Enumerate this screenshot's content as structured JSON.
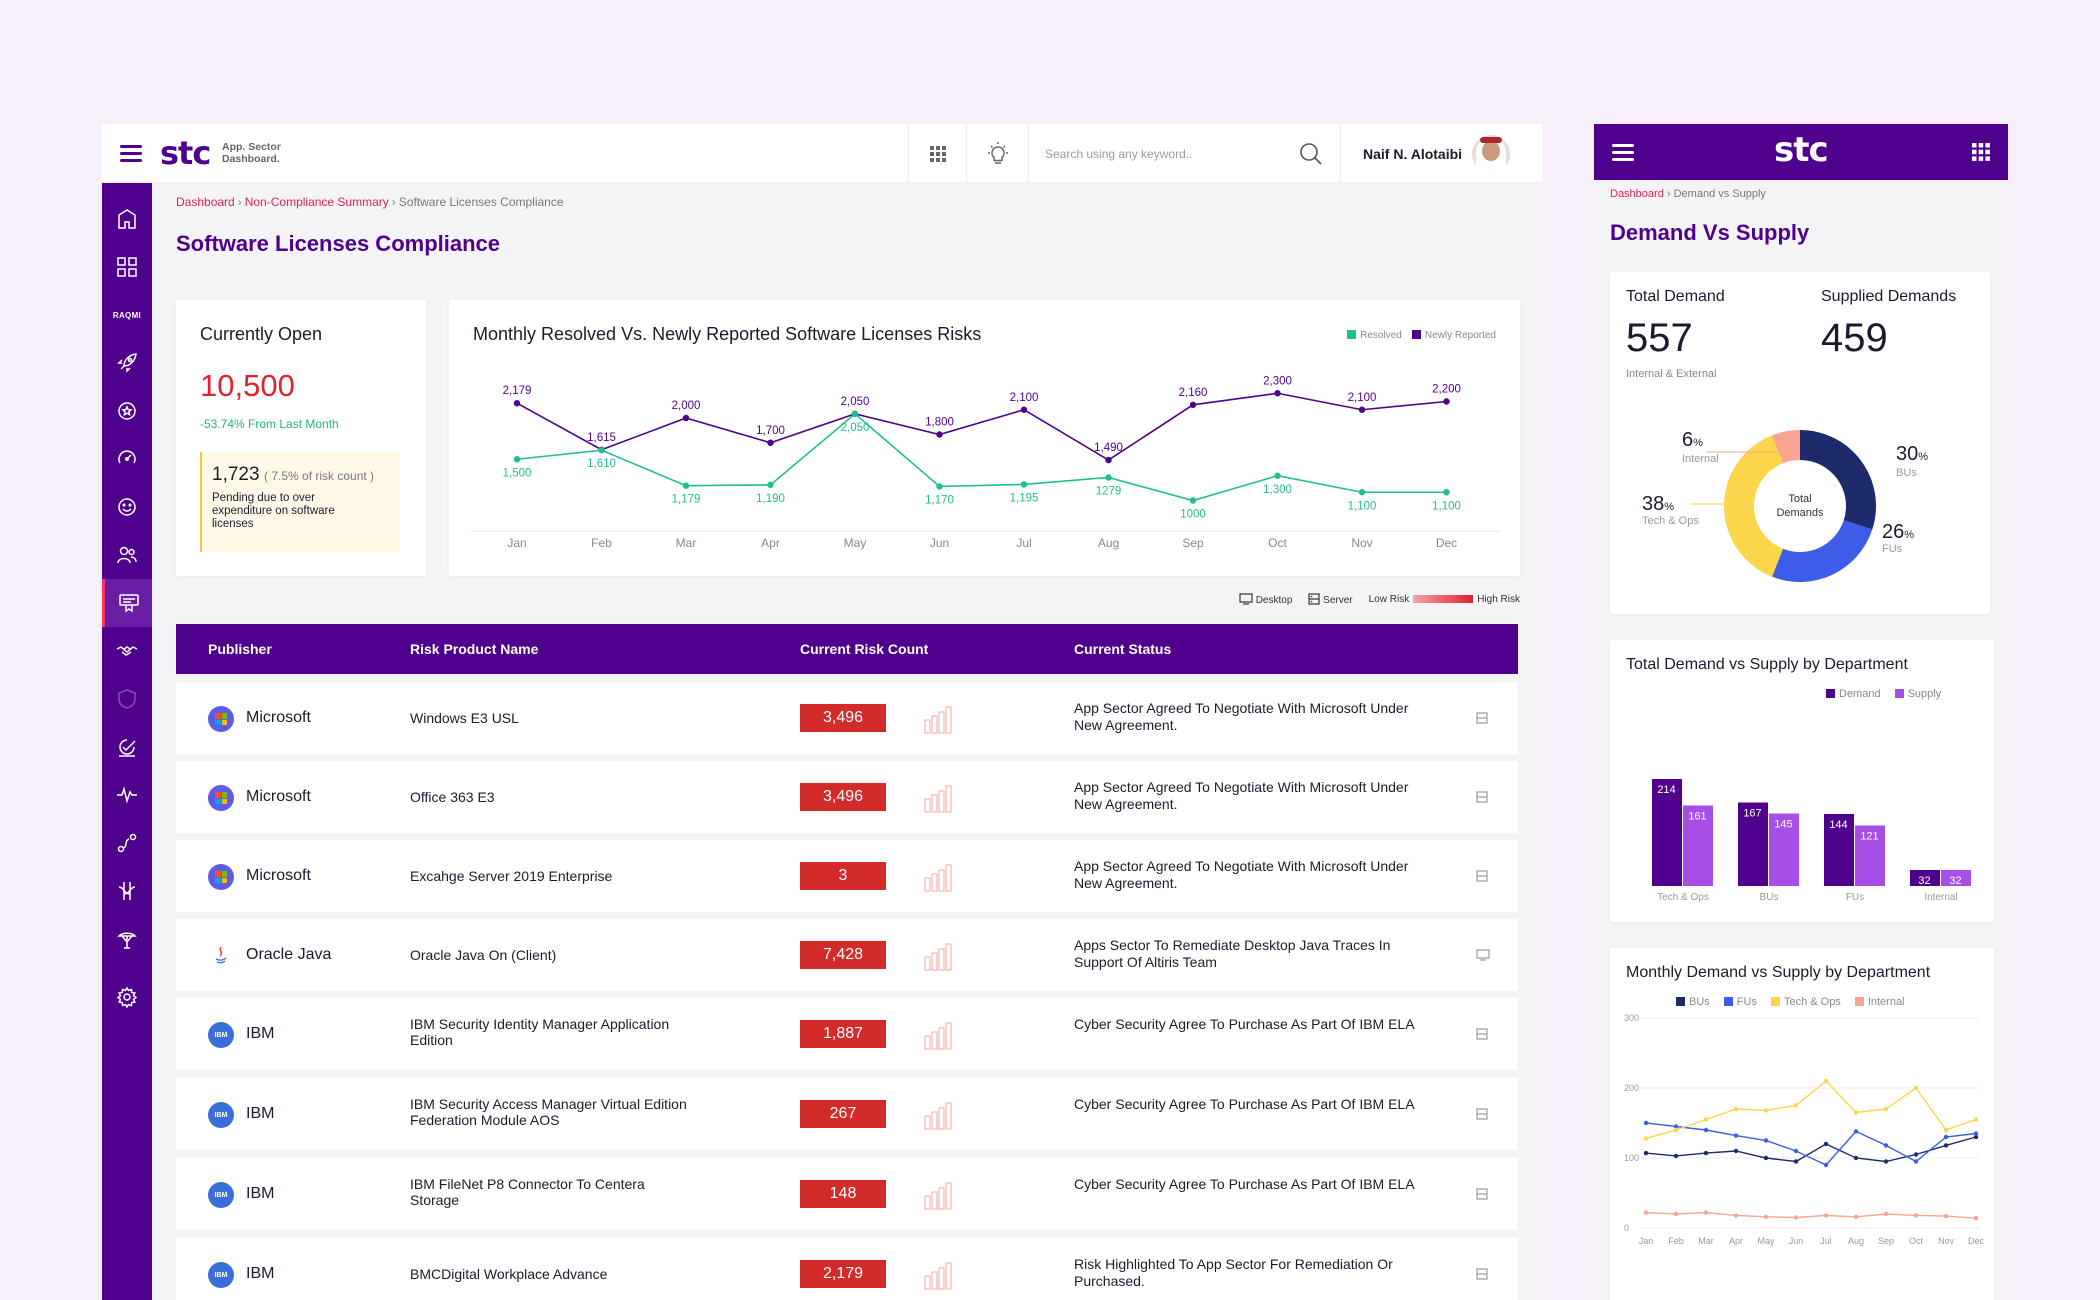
{
  "header": {
    "logo": "stc",
    "subtitle_line1": "App. Sector",
    "subtitle_line2": "Dashboard.",
    "search_placeholder": "Search using any keyword..",
    "user_name": "Naif N. Alotaibi"
  },
  "sidebar": {
    "items": [
      {
        "icon": "home-icon"
      },
      {
        "icon": "grid-icon"
      },
      {
        "icon": "raqmi-logo",
        "label": "RAQMI"
      },
      {
        "icon": "rocket-icon"
      },
      {
        "icon": "badge-icon"
      },
      {
        "icon": "speed-icon"
      },
      {
        "icon": "smile-icon"
      },
      {
        "icon": "users-icon"
      },
      {
        "icon": "license-icon",
        "active": true
      },
      {
        "icon": "handshake-icon"
      },
      {
        "icon": "shield-icon"
      },
      {
        "icon": "checklist-icon"
      },
      {
        "icon": "pulse-icon"
      },
      {
        "icon": "route-icon"
      },
      {
        "icon": "network-icon"
      },
      {
        "icon": "globe-icon"
      },
      {
        "icon": "settings-icon"
      }
    ]
  },
  "breadcrumb": {
    "item1": "Dashboard",
    "item2": "Non-Compliance Summary",
    "current": "Software Licenses Compliance"
  },
  "page_title": "Software Licenses Compliance",
  "open_card": {
    "title": "Currently Open",
    "value": "10,500",
    "trend_value": "-53.74",
    "trend_text": "% From Last Month",
    "note_count": "1,723",
    "note_pct": "( 7.5% of risk count )",
    "note_text": "Pending due to over expenditure on software licenses"
  },
  "risk_chart": {
    "title": "Monthly Resolved Vs. Newly Reported Software Licenses Risks",
    "legend_resolved": "Resolved",
    "legend_new": "Newly Reported"
  },
  "chart_data": [
    {
      "type": "line",
      "title": "Monthly Resolved Vs. Newly Reported Software Licenses Risks",
      "x": [
        "Jan",
        "Feb",
        "Mar",
        "Apr",
        "May",
        "Jun",
        "Jul",
        "Aug",
        "Sep",
        "Oct",
        "Nov",
        "Dec"
      ],
      "series": [
        {
          "name": "Newly Reported",
          "color": "#4f008c",
          "values": [
            2179,
            1615,
            2000,
            1700,
            2050,
            1800,
            2100,
            1490,
            2160,
            2300,
            2100,
            2200
          ],
          "labels": [
            "2,179",
            "1,615",
            "2,000",
            "1,700",
            "2,050",
            "1,800",
            "2,100",
            "1,490",
            "2,160",
            "2,300",
            "2,100",
            "2,200"
          ]
        },
        {
          "name": "Resolved",
          "color": "#1fbf8f",
          "values": [
            1500,
            1610,
            1179,
            1190,
            2050,
            1170,
            1195,
            1279,
            1000,
            1300,
            1100,
            1100
          ],
          "labels": [
            "1,500",
            "1,610",
            "1,179",
            "1,190",
            "2,050",
            "1,170",
            "1,195",
            "1279",
            "1000",
            "1,300",
            "1,100",
            "1,100"
          ]
        }
      ],
      "grid": false,
      "legend": "top-right"
    },
    {
      "type": "pie",
      "title": "",
      "center_label": "Total Demands",
      "slices": [
        {
          "label": "BUs",
          "value": 30,
          "color": "#1d2a6b"
        },
        {
          "label": "FUs",
          "value": 26,
          "color": "#3d5ce8"
        },
        {
          "label": "Tech & Ops",
          "value": 38,
          "color": "#fcd64a"
        },
        {
          "label": "Internal",
          "value": 6,
          "color": "#f7a493"
        }
      ]
    },
    {
      "type": "bar",
      "title": "Total Demand vs Supply by Department",
      "categories": [
        "Tech & Ops",
        "BUs",
        "FUs",
        "Internal"
      ],
      "series": [
        {
          "name": "Demand",
          "color": "#4f008c",
          "values": [
            214,
            167,
            144,
            32
          ]
        },
        {
          "name": "Supply",
          "color": "#a64ee6",
          "values": [
            161,
            145,
            121,
            32
          ]
        }
      ],
      "legend": "top-right"
    },
    {
      "type": "line",
      "title": "Monthly Demand vs Supply by Department",
      "x": [
        "Jan",
        "Feb",
        "Mar",
        "Apr",
        "May",
        "Jun",
        "Jul",
        "Aug",
        "Sep",
        "Oct",
        "Nov",
        "Dec"
      ],
      "ylim": [
        0,
        300
      ],
      "yticks": [
        "0",
        "100",
        "200",
        "300"
      ],
      "series": [
        {
          "name": "BUs",
          "color": "#1d2a6b",
          "values": [
            107,
            103,
            107,
            110,
            100,
            95,
            120,
            100,
            95,
            105,
            118,
            130
          ]
        },
        {
          "name": "FUs",
          "color": "#3d5ce8",
          "values": [
            150,
            145,
            140,
            132,
            125,
            110,
            90,
            138,
            118,
            95,
            130,
            135
          ]
        },
        {
          "name": "Tech & Ops",
          "color": "#fcd64a",
          "values": [
            128,
            140,
            155,
            170,
            168,
            175,
            210,
            165,
            170,
            200,
            140,
            155
          ]
        },
        {
          "name": "Internal",
          "color": "#f7a493",
          "values": [
            22,
            20,
            22,
            18,
            16,
            15,
            18,
            16,
            20,
            18,
            17,
            14
          ]
        }
      ],
      "legend": "top"
    }
  ],
  "table_legend": {
    "desktop": "Desktop",
    "server": "Server",
    "low": "Low Risk",
    "high": "High Risk"
  },
  "table": {
    "headers": [
      "Publisher",
      "Risk Product Name",
      "Current Risk Count",
      "Current Status"
    ],
    "rows": [
      {
        "publisher": "Microsoft",
        "product": "Windows E3 USL",
        "count": "3,496",
        "status": "App Sector Agreed To Negotiate With Microsoft Under New Agreement.",
        "device": "server"
      },
      {
        "publisher": "Microsoft",
        "product": "Office 363 E3",
        "count": "3,496",
        "status": "App Sector Agreed To Negotiate With  Microsoft Under New Agreement.",
        "device": "server"
      },
      {
        "publisher": "Microsoft",
        "product": "Excahge Server 2019 Enterprise",
        "count": "3",
        "status": "App Sector Agreed To Negotiate With Microsoft Under New Agreement.",
        "device": "server"
      },
      {
        "publisher": "Oracle Java",
        "product": "Oracle Java On (Client)",
        "count": "7,428",
        "status": "Apps Sector To Remediate Desktop Java Traces In Support Of Altiris Team",
        "device": "desktop"
      },
      {
        "publisher": "IBM",
        "product": "IBM  Security Identity Manager Application Edition",
        "count": "1,887",
        "status": "Cyber Security Agree To Purchase As Part  Of IBM ELA",
        "device": "server"
      },
      {
        "publisher": "IBM",
        "product": "IBM  Security Access Manager Virtual Edition  Federation Module AOS",
        "count": "267",
        "status": "Cyber Security Agree To Purchase As Part Of IBM ELA",
        "device": "server"
      },
      {
        "publisher": "IBM",
        "product": "IBM FileNet P8 Connector To Centera Storage",
        "count": "148",
        "status": "Cyber Security Agree To Purchase As Part Of IBM ELA",
        "device": "server"
      },
      {
        "publisher": "IBM",
        "product": "BMCDigital Workplace Advance",
        "count": "2,179",
        "status": "Risk Highlighted To App Sector For Remediation Or Purchased.",
        "device": "server"
      }
    ]
  },
  "right_panel": {
    "logo": "stc",
    "breadcrumb_link": "Dashboard",
    "breadcrumb_current": "Demand vs Supply",
    "title": "Demand Vs Supply",
    "total_demand_label": "Total Demand",
    "total_demand_value": "557",
    "total_demand_sub": "Internal & External",
    "supplied_label": "Supplied Demands",
    "supplied_value": "459",
    "bar_title": "Total Demand vs Supply by Department",
    "line_title": "Monthly Demand vs Supply by Department"
  },
  "colors": {
    "brand_purple": "#4f008c",
    "accent_red": "#e0234e",
    "risk_red": "#d32a2a",
    "resolved_green": "#1fbf8f"
  }
}
